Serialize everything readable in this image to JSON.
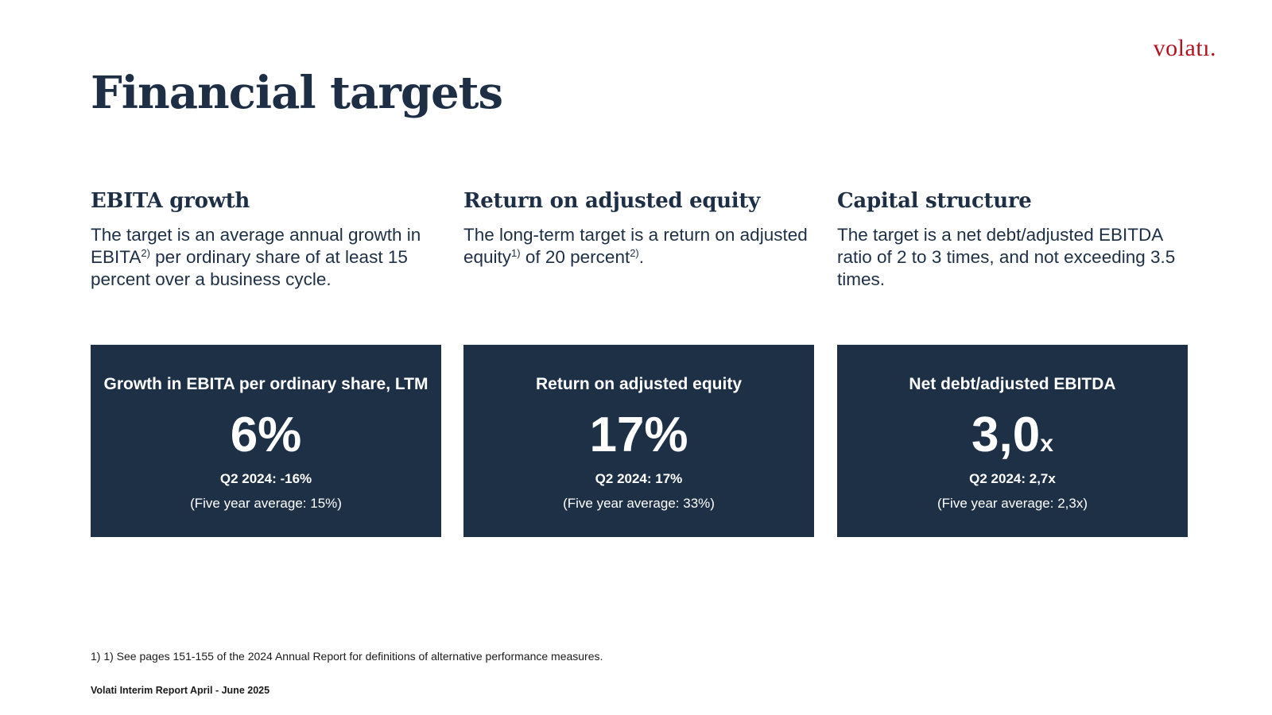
{
  "logo": "volatı.",
  "title": "Financial targets",
  "columns": [
    {
      "heading": "EBITA growth",
      "text_a": "The target is an average annual growth in EBITA",
      "sup_a": "2)",
      "text_b": " per ordinary share of at least 15 percent over a business cycle.",
      "sup_b": "",
      "text_c": ""
    },
    {
      "heading": "Return on adjusted equity",
      "text_a": "The long-term target is a return on adjusted equity",
      "sup_a": "1)",
      "text_b": " of 20 percent",
      "sup_b": "2)",
      "text_c": "."
    },
    {
      "heading": "Capital structure",
      "text_a": "The target is a net debt/adjusted EBITDA ratio of 2 to 3 times, and not exceeding 3.5 times.",
      "sup_a": "",
      "text_b": "",
      "sup_b": "",
      "text_c": ""
    }
  ],
  "kpis": [
    {
      "label": "Growth in EBITA per ordinary share, LTM",
      "value": "6%",
      "suffix": "",
      "comparison": "Q2 2024: -16%",
      "average": "(Five year average: 15%)"
    },
    {
      "label": "Return on adjusted equity",
      "value": "17%",
      "suffix": "",
      "comparison": "Q2 2024: 17%",
      "average": "(Five year average: 33%)"
    },
    {
      "label": "Net debt/adjusted EBITDA",
      "value": "3,0",
      "suffix": "x",
      "comparison": "Q2 2024: 2,7x",
      "average": "(Five year average: 2,3x)"
    }
  ],
  "footnote": "1) 1) See pages 151-155 of the 2024 Annual Report for definitions of alternative performance measures.",
  "footer": "Volati Interim Report April - June 2025",
  "colors": {
    "navy": "#1e3046",
    "text": "#1e2f45",
    "logo_red": "#b3121f"
  }
}
